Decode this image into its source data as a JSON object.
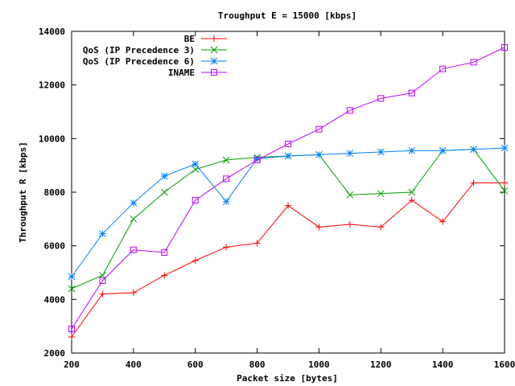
{
  "chart_data": {
    "type": "line",
    "title": "Troughput E = 15000 [kbps]",
    "xlabel": "Packet size [bytes]",
    "ylabel": "Throughput R [kbps]",
    "xlim": [
      200,
      1600
    ],
    "ylim": [
      2000,
      14000
    ],
    "xticks": [
      200,
      400,
      600,
      800,
      1000,
      1200,
      1400,
      1600
    ],
    "yticks": [
      2000,
      4000,
      6000,
      8000,
      10000,
      12000,
      14000
    ],
    "grid": false,
    "legend_position": "top-left",
    "x": [
      200,
      300,
      400,
      500,
      600,
      700,
      800,
      900,
      1000,
      1100,
      1200,
      1300,
      1400,
      1500,
      1600
    ],
    "series": [
      {
        "name": "BE",
        "color": "#ff0000",
        "marker": "plus",
        "values": [
          2600,
          4200,
          4250,
          4900,
          5450,
          5950,
          6100,
          7500,
          6700,
          6800,
          6700,
          7700,
          6900,
          8350,
          8350
        ]
      },
      {
        "name": "QoS (IP Precedence 3)",
        "color": "#00a000",
        "marker": "cross",
        "values": [
          4400,
          4900,
          7000,
          8000,
          8850,
          9200,
          9300,
          9350,
          9400,
          7900,
          7950,
          8000,
          9550,
          9600,
          8050
        ]
      },
      {
        "name": "QoS (IP Precedence 6)",
        "color": "#0080ff",
        "marker": "star",
        "values": [
          4850,
          6450,
          7600,
          8600,
          9050,
          7650,
          9250,
          9350,
          9400,
          9450,
          9500,
          9550,
          9550,
          9600,
          9650
        ]
      },
      {
        "name": "INAME",
        "color": "#c000ff",
        "marker": "square",
        "values": [
          2900,
          4700,
          5850,
          5750,
          7700,
          8500,
          9200,
          9800,
          10350,
          11050,
          11500,
          11700,
          12600,
          12850,
          13400
        ]
      }
    ]
  }
}
